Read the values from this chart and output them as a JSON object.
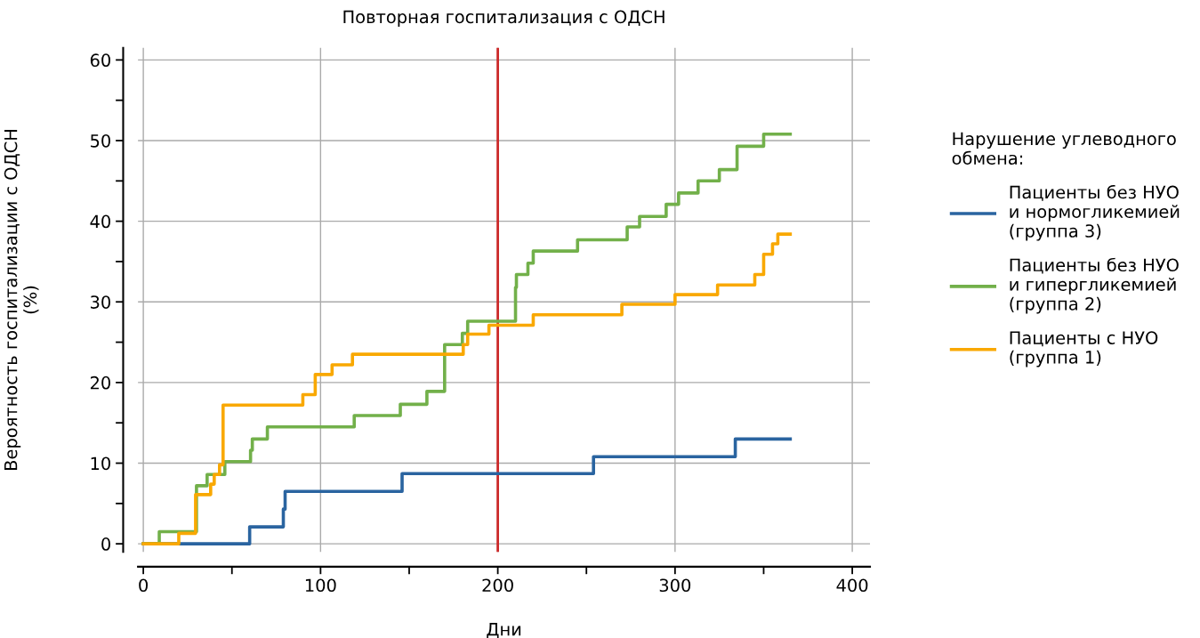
{
  "chart_data": {
    "type": "step",
    "title": "Повторная госпитализация с ОДСН",
    "xlabel": "Дни",
    "ylabel": "Вероятность госпитализации с ОДСН\n(%)",
    "legend_title": "Нарушение углеводного\nобмена:",
    "series": [
      {
        "name": "Пациенты без НУО\nи нормогликемией\n(группа 3)",
        "color": "#2a64a0",
        "x": [
          0,
          60,
          79,
          80,
          146,
          254,
          334,
          365
        ],
        "values": [
          0,
          2.1,
          4.3,
          6.5,
          8.7,
          10.8,
          13.0,
          13.0
        ]
      },
      {
        "name": "Пациенты без НУО\nи гипергликемией\n(группа 2)",
        "color": "#72b04a",
        "x": [
          0,
          9,
          30,
          36,
          46,
          60.5,
          61.5,
          70,
          119,
          145,
          160,
          170,
          180,
          183,
          210,
          210.5,
          217,
          220,
          245,
          273,
          280,
          295,
          302,
          313,
          325,
          335,
          350,
          365
        ],
        "values": [
          0,
          1.5,
          7.2,
          8.6,
          10.2,
          11.6,
          13.0,
          14.5,
          15.9,
          17.3,
          18.9,
          24.7,
          26.1,
          27.6,
          31.8,
          33.4,
          34.8,
          36.3,
          37.7,
          39.3,
          40.6,
          42.1,
          43.5,
          45.0,
          46.4,
          49.3,
          50.8,
          50.8
        ]
      },
      {
        "name": "Пациенты с НУО\n(группа 1)",
        "color": "#f9a800",
        "x": [
          0,
          20,
          29.5,
          38,
          40,
          43,
          45,
          90,
          97,
          106.5,
          118,
          180.5,
          183,
          195,
          220,
          270,
          300,
          324,
          345,
          350,
          355,
          358,
          365
        ],
        "values": [
          0,
          1.3,
          6.1,
          7.4,
          8.6,
          9.8,
          17.2,
          18.5,
          21.0,
          22.2,
          23.5,
          24.7,
          26.0,
          27.1,
          28.4,
          29.7,
          30.9,
          32.1,
          33.4,
          35.9,
          37.2,
          38.4,
          38.4
        ]
      }
    ],
    "xlim": [
      -3,
      410
    ],
    "ylim": [
      -1,
      61.5
    ],
    "xticks": [
      0,
      100,
      200,
      300,
      400
    ],
    "yticks": [
      0,
      10,
      20,
      30,
      40,
      50,
      60
    ],
    "ref_lines": [
      {
        "axis": "x",
        "value": 200,
        "color": "#cc2a2a"
      }
    ],
    "grid": true,
    "legend": "right",
    "line_style": "solid",
    "marker": "none"
  }
}
